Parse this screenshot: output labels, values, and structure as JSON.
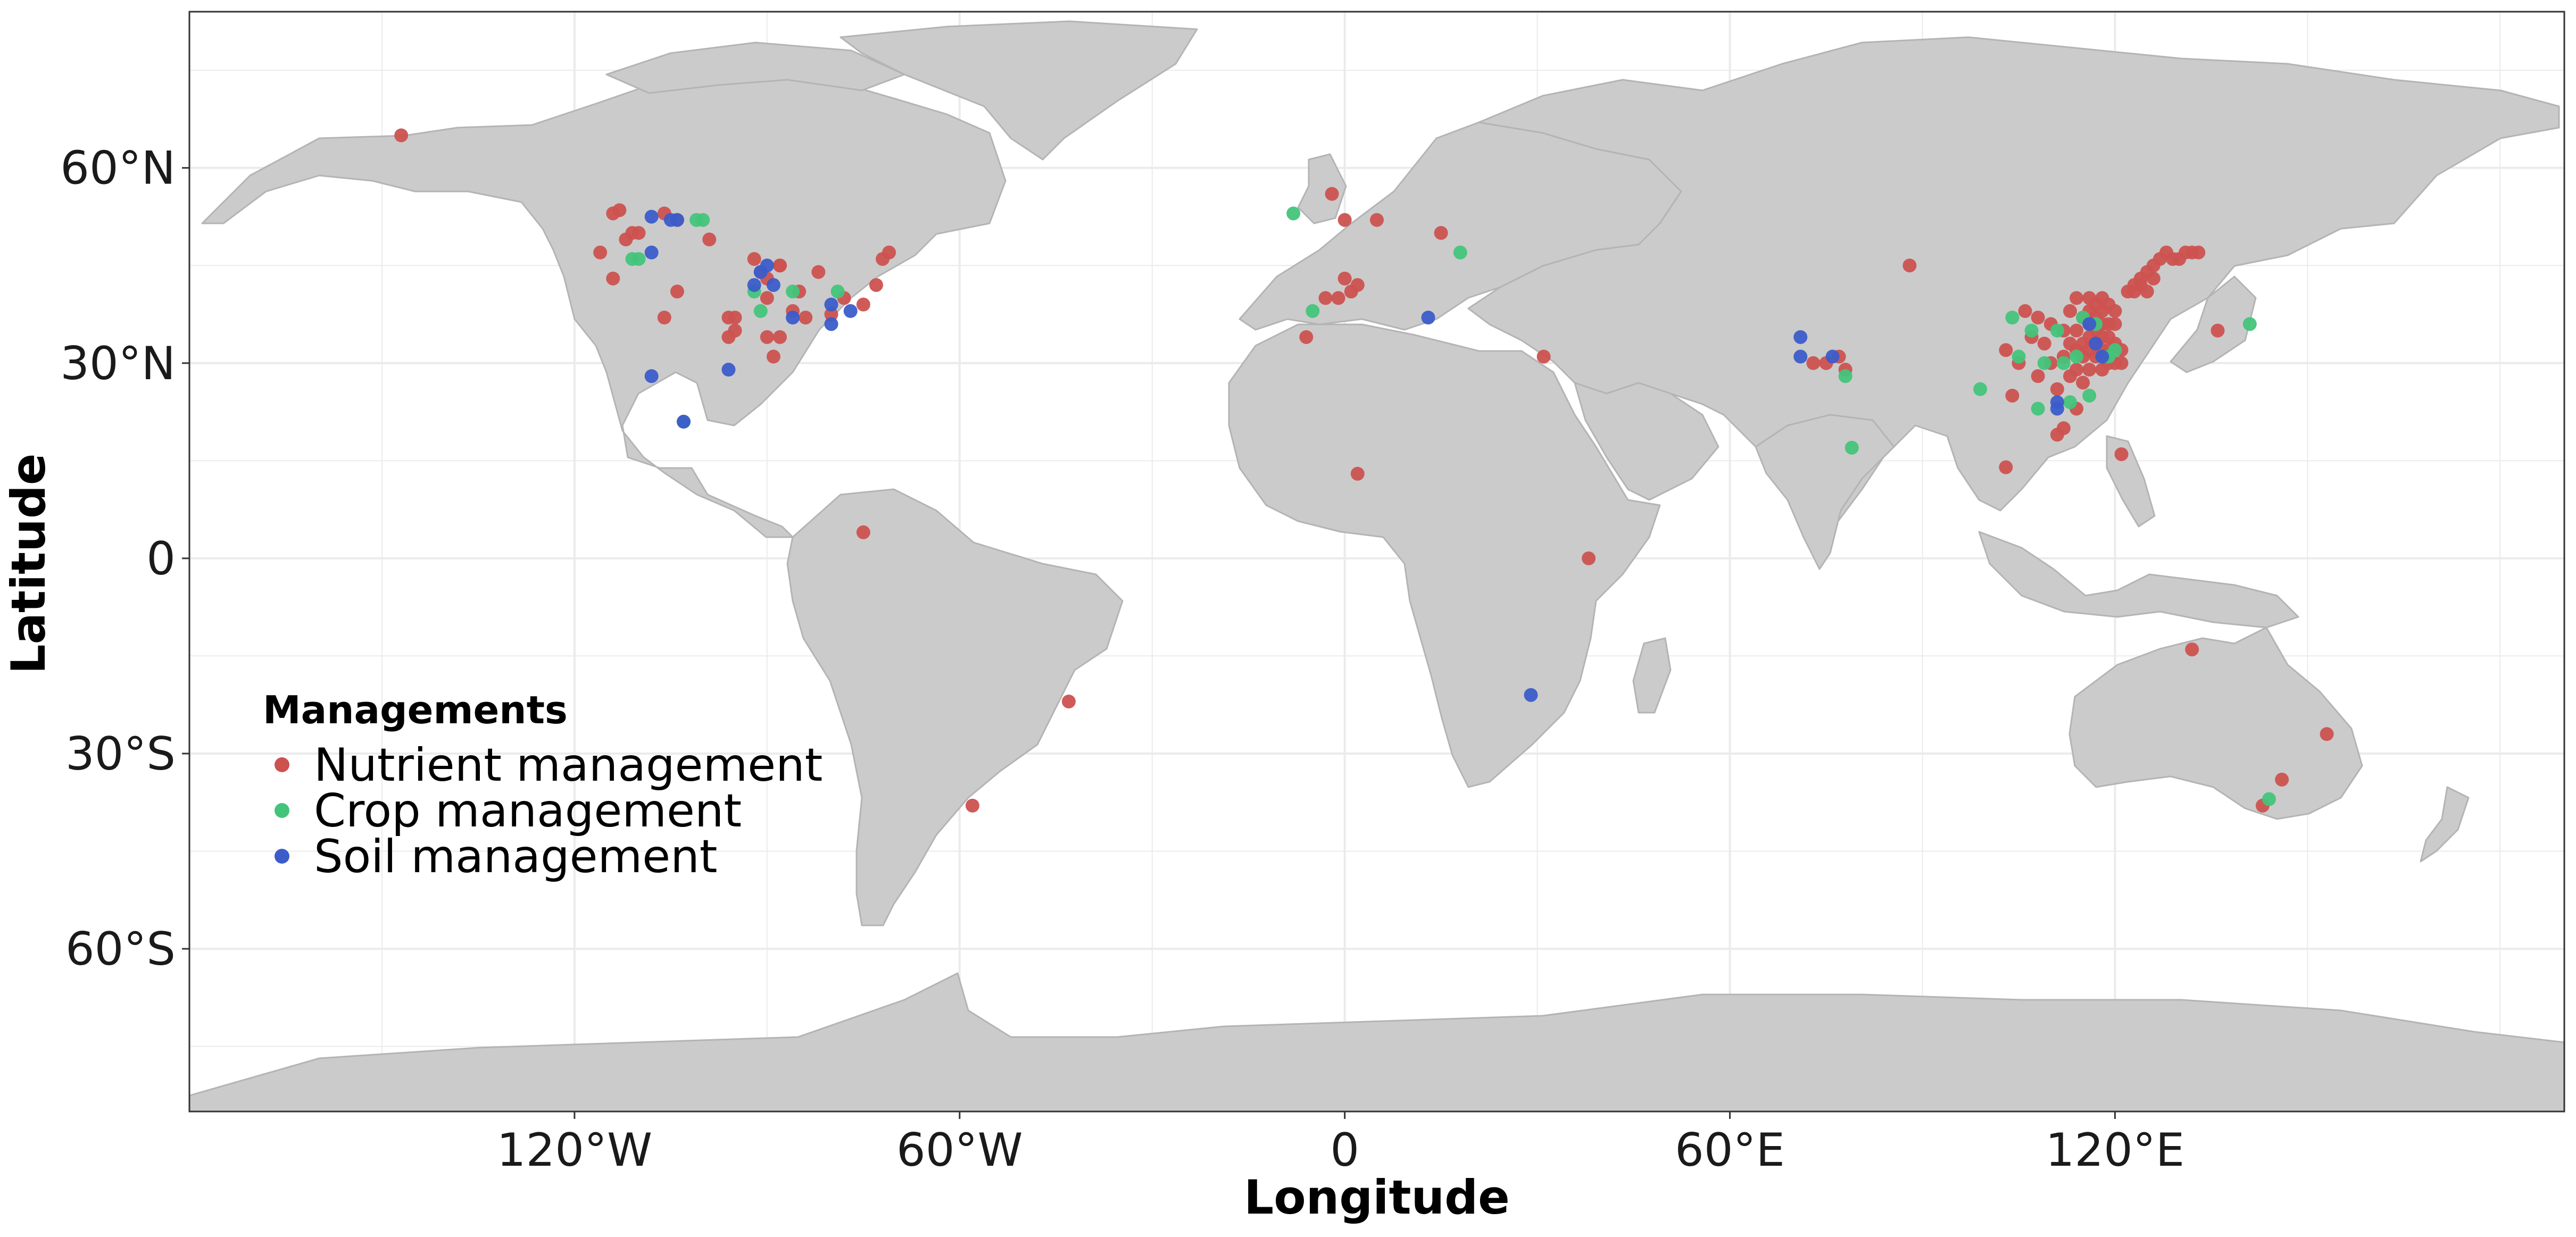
{
  "chart_data": {
    "type": "scatter",
    "xlabel": "Longitude",
    "ylabel": "Latitude",
    "xlim": [
      -180,
      190
    ],
    "ylim": [
      -85,
      84
    ],
    "x_ticks": [
      {
        "value": -120,
        "label": "120°W"
      },
      {
        "value": -60,
        "label": "60°W"
      },
      {
        "value": 0,
        "label": "0"
      },
      {
        "value": 60,
        "label": "60°E"
      },
      {
        "value": 120,
        "label": "120°E"
      }
    ],
    "y_ticks": [
      {
        "value": 60,
        "label": "60°N"
      },
      {
        "value": 30,
        "label": "30°N"
      },
      {
        "value": 0,
        "label": "0"
      },
      {
        "value": -30,
        "label": "30°S"
      },
      {
        "value": -60,
        "label": "60°S"
      }
    ],
    "grid": true,
    "legend": {
      "title": "Managements",
      "placement": "inside-bottom-left"
    },
    "colors": {
      "land": "#cbcbcb",
      "border": "#b4b4b4",
      "grid": "#ebebeb",
      "panel_border": "#333333"
    },
    "series": [
      {
        "name": "Nutrient management",
        "color": "#cc5250",
        "points": [
          [
            -147,
            65
          ],
          [
            -116,
            47
          ],
          [
            -114,
            53
          ],
          [
            -113,
            53.5
          ],
          [
            -112,
            49
          ],
          [
            -111,
            50
          ],
          [
            -110,
            50
          ],
          [
            -114,
            43
          ],
          [
            -106,
            53
          ],
          [
            -104,
            52
          ],
          [
            -99,
            49
          ],
          [
            -106,
            37
          ],
          [
            -104,
            41
          ],
          [
            -96,
            37
          ],
          [
            -96,
            34
          ],
          [
            -95,
            35
          ],
          [
            -92,
            46
          ],
          [
            -91,
            44
          ],
          [
            -90,
            43
          ],
          [
            -90,
            40
          ],
          [
            -88,
            45
          ],
          [
            -88,
            45
          ],
          [
            -86,
            38
          ],
          [
            -84,
            37
          ],
          [
            -85,
            41
          ],
          [
            -82,
            44
          ],
          [
            -80,
            37.5
          ],
          [
            -78,
            40
          ],
          [
            -75,
            39
          ],
          [
            -73,
            42
          ],
          [
            -72,
            46
          ],
          [
            -71,
            47
          ],
          [
            -90,
            34
          ],
          [
            -88,
            34
          ],
          [
            -89,
            31
          ],
          [
            -95,
            37
          ],
          [
            -75,
            4
          ],
          [
            -43,
            -22
          ],
          [
            -58,
            -38
          ],
          [
            -1,
            40
          ],
          [
            -6,
            34
          ],
          [
            -3,
            40
          ],
          [
            0,
            43
          ],
          [
            1,
            41
          ],
          [
            2,
            42
          ],
          [
            -2,
            56
          ],
          [
            0,
            52
          ],
          [
            5,
            52
          ],
          [
            15,
            50
          ],
          [
            2,
            13
          ],
          [
            31,
            31
          ],
          [
            38,
            0
          ],
          [
            73,
            30
          ],
          [
            75,
            30
          ],
          [
            77,
            31
          ],
          [
            78,
            29
          ],
          [
            88,
            45
          ],
          [
            103,
            14
          ],
          [
            103,
            32
          ],
          [
            104,
            25
          ],
          [
            105,
            30
          ],
          [
            106,
            38
          ],
          [
            107,
            34
          ],
          [
            108,
            28
          ],
          [
            108,
            37
          ],
          [
            109,
            33
          ],
          [
            110,
            30
          ],
          [
            110,
            36
          ],
          [
            111,
            26
          ],
          [
            112,
            31
          ],
          [
            112,
            35
          ],
          [
            113,
            28
          ],
          [
            113,
            33
          ],
          [
            113,
            38
          ],
          [
            114,
            23
          ],
          [
            114,
            29
          ],
          [
            114,
            32
          ],
          [
            114,
            35
          ],
          [
            114,
            40
          ],
          [
            115,
            27
          ],
          [
            115,
            31
          ],
          [
            115,
            33
          ],
          [
            115,
            37
          ],
          [
            116,
            29
          ],
          [
            116,
            32
          ],
          [
            116,
            34
          ],
          [
            116,
            36
          ],
          [
            116,
            38
          ],
          [
            116,
            40
          ],
          [
            117,
            31
          ],
          [
            117,
            33
          ],
          [
            117,
            35
          ],
          [
            117,
            37
          ],
          [
            117,
            39
          ],
          [
            118,
            29
          ],
          [
            118,
            32
          ],
          [
            118,
            34
          ],
          [
            118,
            36
          ],
          [
            118,
            38
          ],
          [
            118,
            40
          ],
          [
            119,
            30
          ],
          [
            119,
            32
          ],
          [
            119,
            34
          ],
          [
            119,
            36
          ],
          [
            119,
            39
          ],
          [
            120,
            30
          ],
          [
            120,
            33
          ],
          [
            120,
            36
          ],
          [
            120,
            38
          ],
          [
            121,
            30
          ],
          [
            121,
            32
          ],
          [
            121,
            16
          ],
          [
            122,
            41
          ],
          [
            123,
            42
          ],
          [
            124,
            43
          ],
          [
            125,
            44
          ],
          [
            126,
            45
          ],
          [
            127,
            46
          ],
          [
            128,
            47
          ],
          [
            129,
            46
          ],
          [
            130,
            46
          ],
          [
            131,
            47
          ],
          [
            132,
            47
          ],
          [
            133,
            47
          ],
          [
            125,
            41
          ],
          [
            124,
            42
          ],
          [
            123,
            41
          ],
          [
            126,
            43
          ],
          [
            112,
            20
          ],
          [
            111,
            19
          ],
          [
            136,
            35
          ],
          [
            132,
            -14
          ],
          [
            146,
            -34
          ],
          [
            143,
            -38
          ],
          [
            153,
            -27
          ]
        ]
      },
      {
        "name": "Crop management",
        "color": "#43c47a",
        "points": [
          [
            -110,
            46
          ],
          [
            -111,
            46
          ],
          [
            -101,
            52
          ],
          [
            -100,
            52
          ],
          [
            -92,
            41
          ],
          [
            -91,
            38
          ],
          [
            -86,
            41
          ],
          [
            -79,
            41
          ],
          [
            -103,
            21
          ],
          [
            -8,
            53
          ],
          [
            -5,
            38
          ],
          [
            18,
            47
          ],
          [
            78,
            28
          ],
          [
            79,
            17
          ],
          [
            104,
            37
          ],
          [
            105,
            31
          ],
          [
            107,
            35
          ],
          [
            108,
            23
          ],
          [
            109,
            30
          ],
          [
            111,
            35
          ],
          [
            112,
            30
          ],
          [
            113,
            24
          ],
          [
            114,
            31
          ],
          [
            115,
            37
          ],
          [
            116,
            25
          ],
          [
            117,
            36
          ],
          [
            119,
            31
          ],
          [
            120,
            32
          ],
          [
            141,
            36
          ],
          [
            144,
            -37
          ],
          [
            99,
            26
          ]
        ]
      },
      {
        "name": "Soil management",
        "color": "#3b5cc9",
        "points": [
          [
            -108,
            47
          ],
          [
            -108,
            52.5
          ],
          [
            -105,
            52
          ],
          [
            -104,
            52
          ],
          [
            -92,
            42
          ],
          [
            -91,
            44
          ],
          [
            -90,
            45
          ],
          [
            -89,
            42
          ],
          [
            -86,
            37
          ],
          [
            -80,
            39
          ],
          [
            -80,
            36
          ],
          [
            -77,
            38
          ],
          [
            -108,
            28
          ],
          [
            -103,
            21
          ],
          [
            -96,
            29
          ],
          [
            13,
            37
          ],
          [
            71,
            34
          ],
          [
            71,
            31
          ],
          [
            76,
            31
          ],
          [
            29,
            -21
          ],
          [
            111,
            23
          ],
          [
            111,
            24
          ],
          [
            116,
            36
          ],
          [
            118,
            31
          ],
          [
            117,
            33
          ]
        ]
      }
    ]
  }
}
